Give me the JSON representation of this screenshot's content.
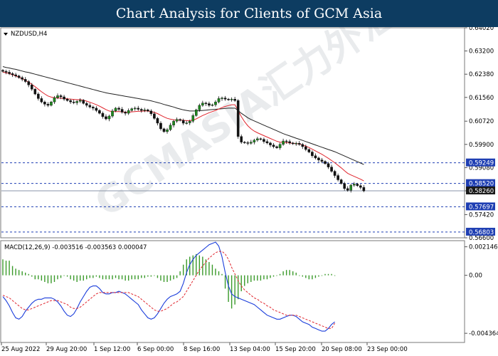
{
  "header": {
    "title": "Chart Analysis for Clients of GCM Asia"
  },
  "watermark": "GCMASIA汇力外汇",
  "chart_data": [
    {
      "type": "candlestick",
      "symbol_label": "NZDUSD,H4",
      "ylim": [
        0.566,
        0.6402
      ],
      "yticks": [
        "0.64020",
        "0.63200",
        "0.62380",
        "0.61560",
        "0.60720",
        "0.59900",
        "0.59080",
        "0.58260",
        "0.57420",
        "0.56600"
      ],
      "levels": [
        {
          "label": "0.59249",
          "value": 0.59249,
          "style": "dashed",
          "color": "#1f3fb3"
        },
        {
          "label": "0.58520",
          "value": 0.5852,
          "style": "dashed",
          "color": "#1f3fb3"
        },
        {
          "label": "0.58260",
          "value": 0.5826,
          "style": "solid",
          "color": "#8a96a8",
          "current": true
        },
        {
          "label": "0.57697",
          "value": 0.57697,
          "style": "dashed",
          "color": "#1f3fb3"
        },
        {
          "label": "0.56803",
          "value": 0.56803,
          "style": "dashed",
          "color": "#1f3fb3"
        }
      ],
      "x_labels": [
        "25 Aug 2022",
        "29 Aug 20:00",
        "1 Sep 12:00",
        "6 Sep 00:00",
        "8 Sep 16:00",
        "13 Sep 04:00",
        "15 Sep 20:00",
        "20 Sep 08:00",
        "23 Sep 00:00"
      ],
      "close": [
        0.6248,
        0.6245,
        0.624,
        0.6236,
        0.6232,
        0.6226,
        0.622,
        0.6212,
        0.62,
        0.6185,
        0.6168,
        0.6152,
        0.614,
        0.6132,
        0.6128,
        0.614,
        0.6155,
        0.6162,
        0.6158,
        0.615,
        0.6145,
        0.614,
        0.6137,
        0.6142,
        0.6146,
        0.6135,
        0.6128,
        0.6122,
        0.6118,
        0.611,
        0.61,
        0.6088,
        0.608,
        0.609,
        0.6108,
        0.6118,
        0.6114,
        0.6104,
        0.61,
        0.611,
        0.6116,
        0.6118,
        0.6114,
        0.611,
        0.6112,
        0.6108,
        0.6098,
        0.6082,
        0.6065,
        0.6045,
        0.6035,
        0.6042,
        0.6058,
        0.6072,
        0.6078,
        0.6075,
        0.6065,
        0.6066,
        0.6072,
        0.6092,
        0.6112,
        0.6128,
        0.6136,
        0.6134,
        0.6128,
        0.613,
        0.614,
        0.6152,
        0.6154,
        0.615,
        0.6148,
        0.615,
        0.6145,
        0.6018,
        0.5998,
        0.5996,
        0.5994,
        0.5998,
        0.6005,
        0.601,
        0.6008,
        0.6,
        0.5995,
        0.5988,
        0.5982,
        0.5978,
        0.599,
        0.6002,
        0.6,
        0.5995,
        0.5992,
        0.5994,
        0.599,
        0.5982,
        0.5972,
        0.5963,
        0.595,
        0.5942,
        0.5935,
        0.593,
        0.5922,
        0.591,
        0.5895,
        0.588,
        0.5865,
        0.5852,
        0.5834,
        0.5828,
        0.5846,
        0.585,
        0.5844,
        0.5838,
        0.5826
      ],
      "indicator_lines": [
        {
          "name": "black MA",
          "color": "#222222",
          "values": [
            0.6265,
            0.6262,
            0.626,
            0.6257,
            0.6255,
            0.6252,
            0.6249,
            0.6246,
            0.6244,
            0.6241,
            0.6238,
            0.6235,
            0.6232,
            0.6229,
            0.6226,
            0.6223,
            0.622,
            0.6217,
            0.6214,
            0.6211,
            0.6208,
            0.6205,
            0.6202,
            0.6199,
            0.6196,
            0.6193,
            0.619,
            0.6187,
            0.6184,
            0.6181,
            0.6178,
            0.6175,
            0.6172,
            0.617,
            0.6168,
            0.6166,
            0.6164,
            0.6162,
            0.616,
            0.6158,
            0.6156,
            0.6154,
            0.6152,
            0.615,
            0.6148,
            0.6146,
            0.6144,
            0.6141,
            0.6138,
            0.6135,
            0.6131,
            0.6128,
            0.6125,
            0.6122,
            0.6118,
            0.6115,
            0.6112,
            0.611,
            0.6108,
            0.6108,
            0.6108,
            0.6109,
            0.611,
            0.6111,
            0.6112,
            0.6113,
            0.6114,
            0.6115,
            0.6116,
            0.6117,
            0.6118,
            0.6118,
            0.6118,
            0.611,
            0.61,
            0.6092,
            0.6084,
            0.6078,
            0.6073,
            0.6068,
            0.6063,
            0.6058,
            0.6053,
            0.6048,
            0.6043,
            0.6038,
            0.6033,
            0.6028,
            0.6024,
            0.602,
            0.6016,
            0.6012,
            0.6008,
            0.6004,
            0.6,
            0.5996,
            0.5992,
            0.5988,
            0.5984,
            0.598,
            0.5976,
            0.5972,
            0.5968,
            0.5964,
            0.5959,
            0.5954,
            0.5949,
            0.5944,
            0.5939,
            0.5934,
            0.5929,
            0.5924,
            0.5919
          ]
        },
        {
          "name": "red MA",
          "color": "#e0252d",
          "values": [
            0.6245,
            0.6243,
            0.624,
            0.6236,
            0.6232,
            0.6227,
            0.6222,
            0.6216,
            0.621,
            0.6202,
            0.6194,
            0.6185,
            0.6176,
            0.6168,
            0.6161,
            0.6157,
            0.6155,
            0.6154,
            0.6153,
            0.6152,
            0.6151,
            0.615,
            0.6149,
            0.6148,
            0.6148,
            0.6146,
            0.6143,
            0.6139,
            0.6135,
            0.613,
            0.6125,
            0.6119,
            0.6113,
            0.6108,
            0.6106,
            0.6106,
            0.6106,
            0.6105,
            0.6104,
            0.6104,
            0.6105,
            0.6106,
            0.6107,
            0.6107,
            0.6108,
            0.6108,
            0.6106,
            0.6103,
            0.6099,
            0.6093,
            0.6087,
            0.6082,
            0.6079,
            0.6077,
            0.6076,
            0.6076,
            0.6075,
            0.6074,
            0.6074,
            0.6076,
            0.608,
            0.6086,
            0.6092,
            0.6097,
            0.6102,
            0.6106,
            0.611,
            0.6115,
            0.612,
            0.6124,
            0.6127,
            0.613,
            0.613,
            0.611,
            0.6088,
            0.607,
            0.6056,
            0.6045,
            0.6037,
            0.6031,
            0.6026,
            0.6021,
            0.6016,
            0.6011,
            0.6006,
            0.6001,
            0.5998,
            0.5997,
            0.5996,
            0.5995,
            0.5994,
            0.5993,
            0.5991,
            0.5988,
            0.5984,
            0.5979,
            0.5973,
            0.5967,
            0.5961,
            0.5955,
            0.5948,
            0.5941,
            0.5933,
            0.5925,
            0.5916,
            0.5907,
            0.5897,
            0.5888,
            0.5882,
            0.5877,
            0.5872,
            0.5867,
            0.5861
          ]
        }
      ]
    },
    {
      "type": "macd",
      "label": "MACD(12,26,9) -0.003516 -0.003563 0.000047",
      "params": "12,26,9",
      "values": {
        "macd": -0.003516,
        "signal": -0.003563,
        "histogram": 4.7e-05
      },
      "ylim": [
        -0.005,
        0.0025
      ],
      "yticks": [
        "0.002146",
        "0.00",
        "-0.004364"
      ],
      "main": [
        -0.0016,
        -0.0019,
        -0.0023,
        -0.0028,
        -0.0032,
        -0.0033,
        -0.0031,
        -0.0027,
        -0.0024,
        -0.0021,
        -0.0019,
        -0.0018,
        -0.0018,
        -0.0017,
        -0.0017,
        -0.0017,
        -0.0018,
        -0.002,
        -0.0023,
        -0.0027,
        -0.003,
        -0.0031,
        -0.0029,
        -0.0025,
        -0.002,
        -0.0016,
        -0.0012,
        -0.0009,
        -0.0008,
        -0.0008,
        -0.001,
        -0.0013,
        -0.0014,
        -0.0014,
        -0.0013,
        -0.0013,
        -0.0012,
        -0.0013,
        -0.0014,
        -0.0016,
        -0.0018,
        -0.002,
        -0.0022,
        -0.0026,
        -0.0029,
        -0.0032,
        -0.0033,
        -0.0032,
        -0.0029,
        -0.0025,
        -0.0021,
        -0.0018,
        -0.0016,
        -0.0015,
        -0.0014,
        -0.0012,
        -0.0006,
        0.0002,
        0.0008,
        0.0012,
        0.0015,
        0.0017,
        0.0019,
        0.0021,
        0.0023,
        0.0024,
        0.0025,
        0.0022,
        0.0014,
        0.0002,
        -0.0008,
        -0.0014,
        -0.0016,
        -0.0017,
        -0.0018,
        -0.0019,
        -0.002,
        -0.0021,
        -0.0022,
        -0.0024,
        -0.0026,
        -0.0028,
        -0.003,
        -0.0031,
        -0.0032,
        -0.0033,
        -0.0033,
        -0.0032,
        -0.0031,
        -0.003,
        -0.003,
        -0.0031,
        -0.0033,
        -0.0035,
        -0.0036,
        -0.0037,
        -0.0039,
        -0.004,
        -0.0041,
        -0.0042,
        -0.0042,
        -0.004,
        -0.0037,
        -0.0035
      ],
      "signal": [
        -0.0015,
        -0.0016,
        -0.0017,
        -0.0019,
        -0.0021,
        -0.0023,
        -0.0025,
        -0.0026,
        -0.0026,
        -0.0025,
        -0.0024,
        -0.0023,
        -0.0022,
        -0.0021,
        -0.002,
        -0.0019,
        -0.0019,
        -0.0019,
        -0.002,
        -0.0021,
        -0.0022,
        -0.0024,
        -0.0025,
        -0.0025,
        -0.0024,
        -0.0022,
        -0.002,
        -0.0018,
        -0.0016,
        -0.0014,
        -0.0013,
        -0.0013,
        -0.0013,
        -0.0013,
        -0.0013,
        -0.0013,
        -0.0013,
        -0.0013,
        -0.0013,
        -0.0013,
        -0.0014,
        -0.0015,
        -0.0016,
        -0.0018,
        -0.002,
        -0.0022,
        -0.0024,
        -0.0026,
        -0.0027,
        -0.0027,
        -0.0026,
        -0.0025,
        -0.0023,
        -0.0021,
        -0.002,
        -0.0018,
        -0.0016,
        -0.0012,
        -0.0008,
        -0.0004,
        0.0,
        0.0004,
        0.0007,
        0.001,
        0.0013,
        0.0015,
        0.0017,
        0.0018,
        0.0018,
        0.0016,
        0.0012,
        0.0006,
        0.0001,
        -0.0004,
        -0.0008,
        -0.0011,
        -0.0013,
        -0.0015,
        -0.0017,
        -0.0018,
        -0.002,
        -0.0021,
        -0.0023,
        -0.0024,
        -0.0026,
        -0.0027,
        -0.0028,
        -0.0029,
        -0.003,
        -0.003,
        -0.003,
        -0.003,
        -0.0031,
        -0.0032,
        -0.0033,
        -0.0034,
        -0.0035,
        -0.0036,
        -0.0037,
        -0.0038,
        -0.0039,
        -0.004,
        -0.004,
        -0.0036
      ],
      "histogram": [
        0.0012,
        0.0011,
        0.0011,
        0.0007,
        0.0005,
        0.0004,
        0.0003,
        0.0002,
        0.0001,
        -0.0001,
        -0.0003,
        -0.0003,
        -0.0004,
        -0.0005,
        -0.0006,
        -0.0006,
        -0.0005,
        -0.0003,
        -0.0002,
        0.0,
        -0.0001,
        -0.0003,
        -0.0004,
        -0.0005,
        -0.0004,
        -0.0004,
        -0.0003,
        -0.0002,
        -0.0002,
        -0.0001,
        -0.0002,
        -0.0003,
        -0.0003,
        -0.0003,
        -0.0003,
        -0.0002,
        -0.0003,
        -0.0003,
        -0.0004,
        -0.0004,
        -0.0003,
        -0.0003,
        -0.0003,
        -0.0002,
        -0.0002,
        -0.0001,
        -0.0001,
        0.0,
        -0.0002,
        -0.0004,
        -0.0005,
        -0.0005,
        -0.0004,
        -0.0003,
        -0.0002,
        0.0003,
        0.0008,
        0.0012,
        0.0014,
        0.0015,
        0.0016,
        0.0015,
        0.0014,
        0.0012,
        0.001,
        0.0008,
        0.0005,
        0.0003,
        0.0001,
        -0.001,
        -0.002,
        -0.0025,
        -0.0022,
        -0.0018,
        -0.0012,
        -0.0008,
        -0.0006,
        -0.0005,
        -0.0004,
        -0.0004,
        -0.0004,
        -0.0003,
        -0.0003,
        -0.0002,
        -0.0001,
        0.0,
        0.0001,
        0.0003,
        0.0004,
        0.0004,
        0.0003,
        0.0002,
        0.0,
        -0.0001,
        -0.0002,
        -0.0003,
        -0.0003,
        -0.0002,
        -0.0001,
        0.0,
        0.0001,
        0.0001,
        0.0001,
        0.0
      ]
    }
  ],
  "colors": {
    "title_bg": "#0d3c61",
    "bull": "#1f8a1f",
    "bear": "#111111",
    "macd_main": "#1a3ddb",
    "macd_signal": "#e0252d",
    "hist": "#3a9a2a",
    "level": "#1f3fb3",
    "current": "#8a96a8"
  }
}
